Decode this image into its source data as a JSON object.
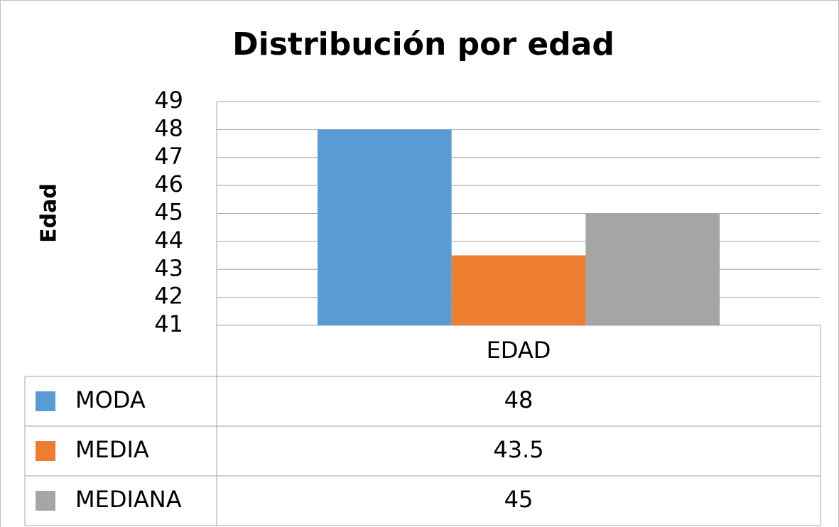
{
  "chart_data": {
    "type": "bar",
    "title": "Distribución por edad",
    "y_label": "Edad",
    "categories": [
      "EDAD"
    ],
    "series": [
      {
        "name": "MODA",
        "color": "#5b9bd5",
        "values": [
          48
        ]
      },
      {
        "name": "MEDIA",
        "color": "#ed7d31",
        "values": [
          43.5
        ]
      },
      {
        "name": "MEDIANA",
        "color": "#a5a5a5",
        "values": [
          45
        ]
      }
    ],
    "ylim": [
      41,
      49
    ],
    "yticks": [
      41,
      42,
      43,
      44,
      45,
      46,
      47,
      48,
      49
    ],
    "grid": true,
    "data_table": true
  }
}
